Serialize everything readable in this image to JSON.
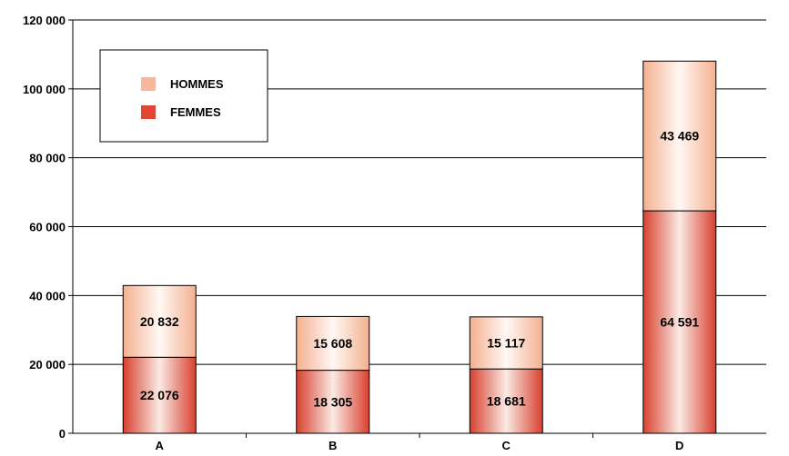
{
  "chart_data": {
    "type": "bar",
    "stacked": true,
    "categories": [
      "A",
      "B",
      "C",
      "D"
    ],
    "series": [
      {
        "name": "FEMMES",
        "values": [
          22076,
          18305,
          18681,
          64591
        ],
        "color": "#e04535"
      },
      {
        "name": "HOMMES",
        "values": [
          20832,
          15608,
          15117,
          43469
        ],
        "color": "#f6b79a"
      }
    ],
    "value_labels": {
      "FEMMES": [
        "22 076",
        "18 305",
        "18 681",
        "64 591"
      ],
      "HOMMES": [
        "20 832",
        "15 608",
        "15 117",
        "43 469"
      ]
    },
    "ylim": [
      0,
      120000
    ],
    "yticks": [
      0,
      20000,
      40000,
      60000,
      80000,
      100000,
      120000
    ],
    "ytick_labels": [
      "0",
      "20 000",
      "40 000",
      "60 000",
      "80 000",
      "100 000",
      "120 000"
    ],
    "grid": true,
    "legend": {
      "placement": "top-left",
      "entries": [
        "HOMMES",
        "FEMMES"
      ]
    },
    "title": "",
    "xlabel": "",
    "ylabel": ""
  }
}
